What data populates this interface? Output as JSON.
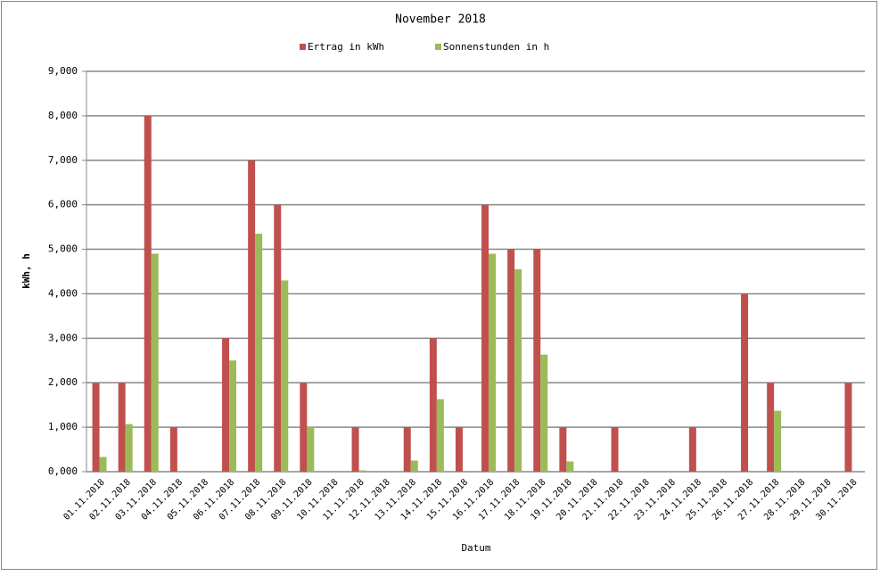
{
  "chart_data": {
    "type": "bar",
    "title": "November 2018",
    "x_label": "Datum",
    "y_label": "kWh, h",
    "categories": [
      "01.11.2018",
      "02.11.2018",
      "03.11.2018",
      "04.11.2018",
      "05.11.2018",
      "06.11.2018",
      "07.11.2018",
      "08.11.2018",
      "09.11.2018",
      "10.11.2018",
      "11.11.2018",
      "12.11.2018",
      "13.11.2018",
      "14.11.2018",
      "15.11.2018",
      "16.11.2018",
      "17.11.2018",
      "18.11.2018",
      "19.11.2018",
      "20.11.2018",
      "21.11.2018",
      "22.11.2018",
      "23.11.2018",
      "24.11.2018",
      "25.11.2018",
      "26.11.2018",
      "27.11.2018",
      "28.11.2018",
      "29.11.2018",
      "30.11.2018"
    ],
    "series": [
      {
        "name": "Ertrag in kWh",
        "color": "#c0504d",
        "values": [
          2,
          2,
          8,
          1,
          0,
          3,
          7,
          6,
          2,
          0,
          1,
          0,
          1,
          3,
          1,
          6,
          5,
          5,
          1,
          0,
          1,
          0,
          0,
          1,
          0,
          4,
          2,
          0,
          0,
          2
        ]
      },
      {
        "name": "Sonnenstunden in h",
        "color": "#9bbb59",
        "values": [
          0.33,
          1.07,
          4.9,
          0,
          0,
          2.5,
          5.35,
          4.3,
          1.0,
          0,
          0.03,
          0,
          0.25,
          1.63,
          0,
          4.9,
          4.55,
          2.63,
          0.23,
          0,
          0,
          0,
          0,
          0,
          0,
          0,
          1.37,
          0,
          0,
          0
        ]
      }
    ],
    "ylim": [
      0,
      9
    ],
    "yticks": [
      {
        "value": 0,
        "label": "0,000"
      },
      {
        "value": 1,
        "label": "1,000"
      },
      {
        "value": 2,
        "label": "2,000"
      },
      {
        "value": 3,
        "label": "3,000"
      },
      {
        "value": 4,
        "label": "4,000"
      },
      {
        "value": 5,
        "label": "5,000"
      },
      {
        "value": 6,
        "label": "6,000"
      },
      {
        "value": 7,
        "label": "7,000"
      },
      {
        "value": 8,
        "label": "8,000"
      },
      {
        "value": 9,
        "label": "9,000"
      }
    ],
    "grid": true,
    "legend": "top"
  }
}
